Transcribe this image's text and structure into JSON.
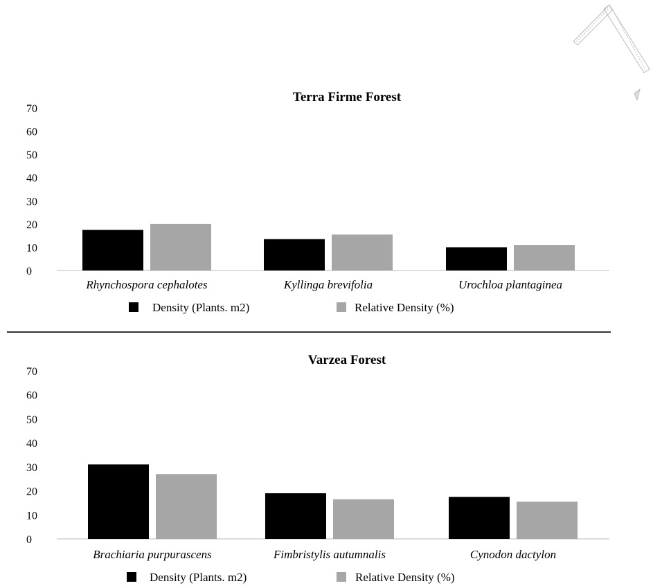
{
  "colors": {
    "density": "#000000",
    "relative_density": "#a6a6a6",
    "axis": "#d0d0d0",
    "text": "#000000",
    "divider": "#333333"
  },
  "chart_data": [
    {
      "type": "bar",
      "title": "Terra Firme Forest",
      "xlabel": "",
      "ylabel": "",
      "ylim": [
        0,
        70
      ],
      "yticks": [
        0,
        10,
        20,
        30,
        40,
        50,
        60,
        70
      ],
      "grid": false,
      "legend_position": "bottom",
      "categories": [
        "Rhynchospora cephalotes",
        "Kyllinga brevifolia",
        "Urochloa plantaginea"
      ],
      "series": [
        {
          "name": "Density (Plants. m2)",
          "color": "#000000",
          "values": [
            17.5,
            13.5,
            10
          ]
        },
        {
          "name": "Relative Density (%)",
          "color": "#a6a6a6",
          "values": [
            20,
            15.5,
            11
          ]
        }
      ]
    },
    {
      "type": "bar",
      "title": "Varzea Forest",
      "xlabel": "",
      "ylabel": "",
      "ylim": [
        0,
        70
      ],
      "yticks": [
        0,
        10,
        20,
        30,
        40,
        50,
        60,
        70
      ],
      "grid": false,
      "legend_position": "bottom",
      "categories": [
        "Brachiaria purpurascens",
        "Fimbristylis autumnalis",
        "Cynodon dactylon"
      ],
      "series": [
        {
          "name": "Density (Plants. m2)",
          "color": "#000000",
          "values": [
            31,
            19,
            17.5
          ]
        },
        {
          "name": "Relative Density (%)",
          "color": "#a6a6a6",
          "values": [
            27,
            16.5,
            15.5
          ]
        }
      ]
    }
  ]
}
